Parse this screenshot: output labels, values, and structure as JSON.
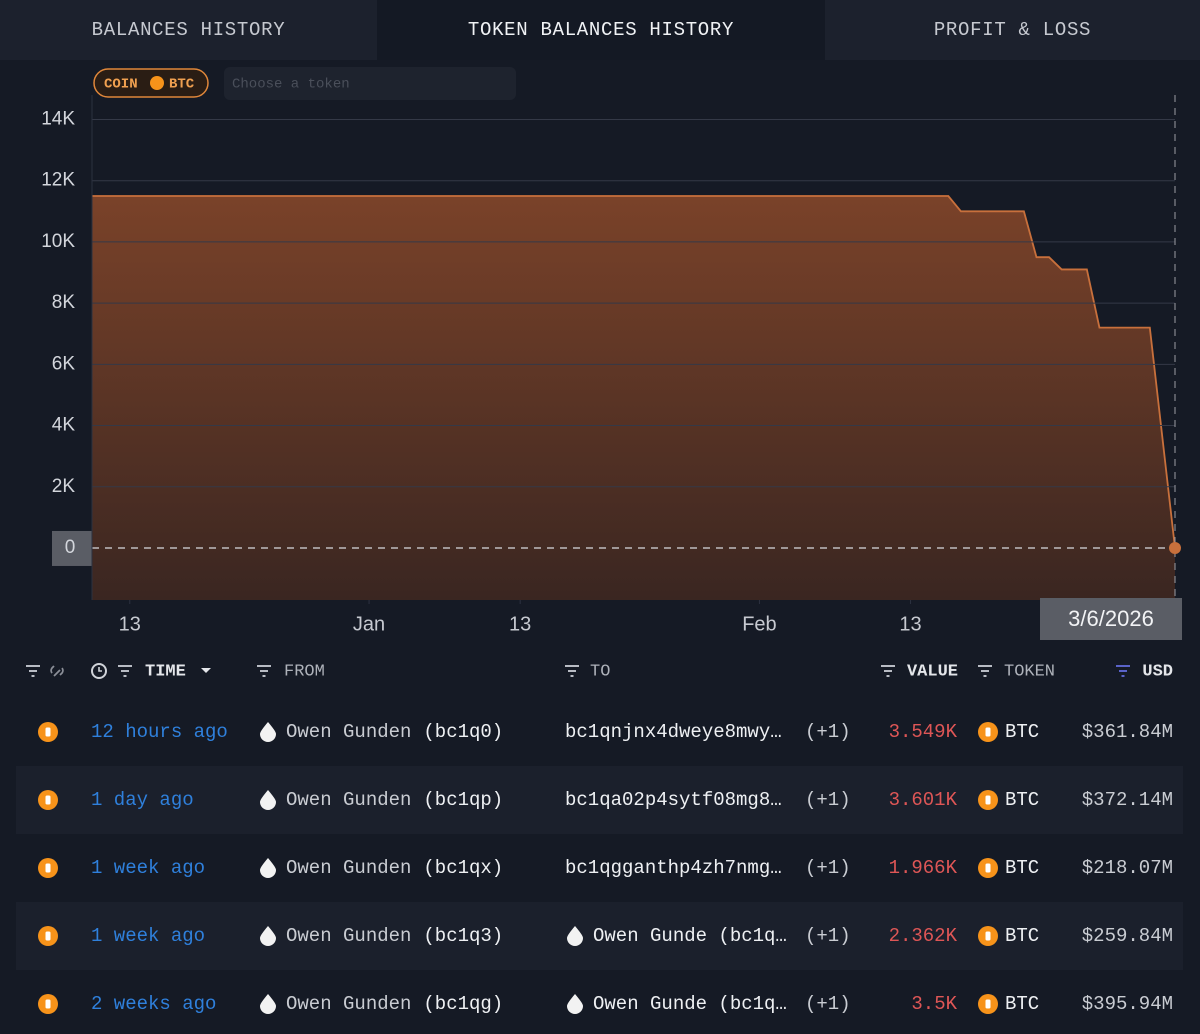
{
  "tabs": [
    "BALANCES HISTORY",
    "TOKEN BALANCES HISTORY",
    "PROFIT & LOSS"
  ],
  "active_tab": 1,
  "filter": {
    "chip_type": "COIN",
    "chip_token": "BTC",
    "search_placeholder": "Choose a token"
  },
  "chart_data": {
    "type": "area",
    "x": [
      "2025-12-10",
      "2026-02-16",
      "2026-02-17",
      "2026-02-22",
      "2026-02-23",
      "2026-02-24",
      "2026-02-25",
      "2026-02-27",
      "2026-02-28",
      "2026-03-04",
      "2026-03-06"
    ],
    "series": [
      {
        "color": "#c8703c",
        "values": [
          11500,
          11500,
          11000,
          11000,
          9500,
          9500,
          9100,
          9100,
          7200,
          7200,
          0
        ]
      }
    ],
    "xlim": [
      "2025-12-10",
      "2026-03-06"
    ],
    "xticks": [
      {
        "value": "2025-12-13",
        "label": "13"
      },
      {
        "value": "2026-01-01",
        "label": "Jan"
      },
      {
        "value": "2026-01-13",
        "label": "13"
      },
      {
        "value": "2026-02-01",
        "label": "Feb"
      },
      {
        "value": "2026-02-13",
        "label": "13"
      }
    ],
    "ylim": [
      -1700,
      14800
    ],
    "yticks": [
      0,
      {
        "value": 2000,
        "label": "2K"
      },
      {
        "value": 4000,
        "label": "4K"
      },
      {
        "value": 6000,
        "label": "6K"
      },
      {
        "value": 8000,
        "label": "8K"
      },
      {
        "value": 10000,
        "label": "10K"
      },
      {
        "value": 12000,
        "label": "12K"
      },
      {
        "value": 14000,
        "label": "14K"
      }
    ],
    "grid": true,
    "crosshair_label": "3/6/2026"
  },
  "table": {
    "columns": [
      "TIME",
      "FROM",
      "TO",
      "VALUE",
      "TOKEN",
      "USD"
    ],
    "rows": [
      {
        "time": "12 hours ago",
        "from_name": "Owen Gunden",
        "from_tag": "(bc1q0)",
        "to_address": "bc1qnjnx4dweye8mwy…",
        "to_extra": "(+1)",
        "value": "3.549K",
        "token": "BTC",
        "usd": "$361.84M"
      },
      {
        "time": "1 day ago",
        "from_name": "Owen Gunden",
        "from_tag": "(bc1qp)",
        "to_address": "bc1qa02p4sytf08mg8…",
        "to_extra": "(+1)",
        "value": "3.601K",
        "token": "BTC",
        "usd": "$372.14M"
      },
      {
        "time": "1 week ago",
        "from_name": "Owen Gunden",
        "from_tag": "(bc1qx)",
        "to_address": "bc1qgganthp4zh7nmg…",
        "to_extra": "(+1)",
        "value": "1.966K",
        "token": "BTC",
        "usd": "$218.07M"
      },
      {
        "time": "1 week ago",
        "from_name": "Owen Gunden",
        "from_tag": "(bc1q3)",
        "to_label": "Owen Gunde (bc1q…",
        "to_extra": "(+1)",
        "value": "2.362K",
        "token": "BTC",
        "usd": "$259.84M"
      },
      {
        "time": "2 weeks ago",
        "from_name": "Owen Gunden",
        "from_tag": "(bc1qg)",
        "to_label": "Owen Gunde (bc1q…",
        "to_extra": "(+1)",
        "value": "3.5K",
        "token": "BTC",
        "usd": "$395.94M"
      }
    ]
  }
}
